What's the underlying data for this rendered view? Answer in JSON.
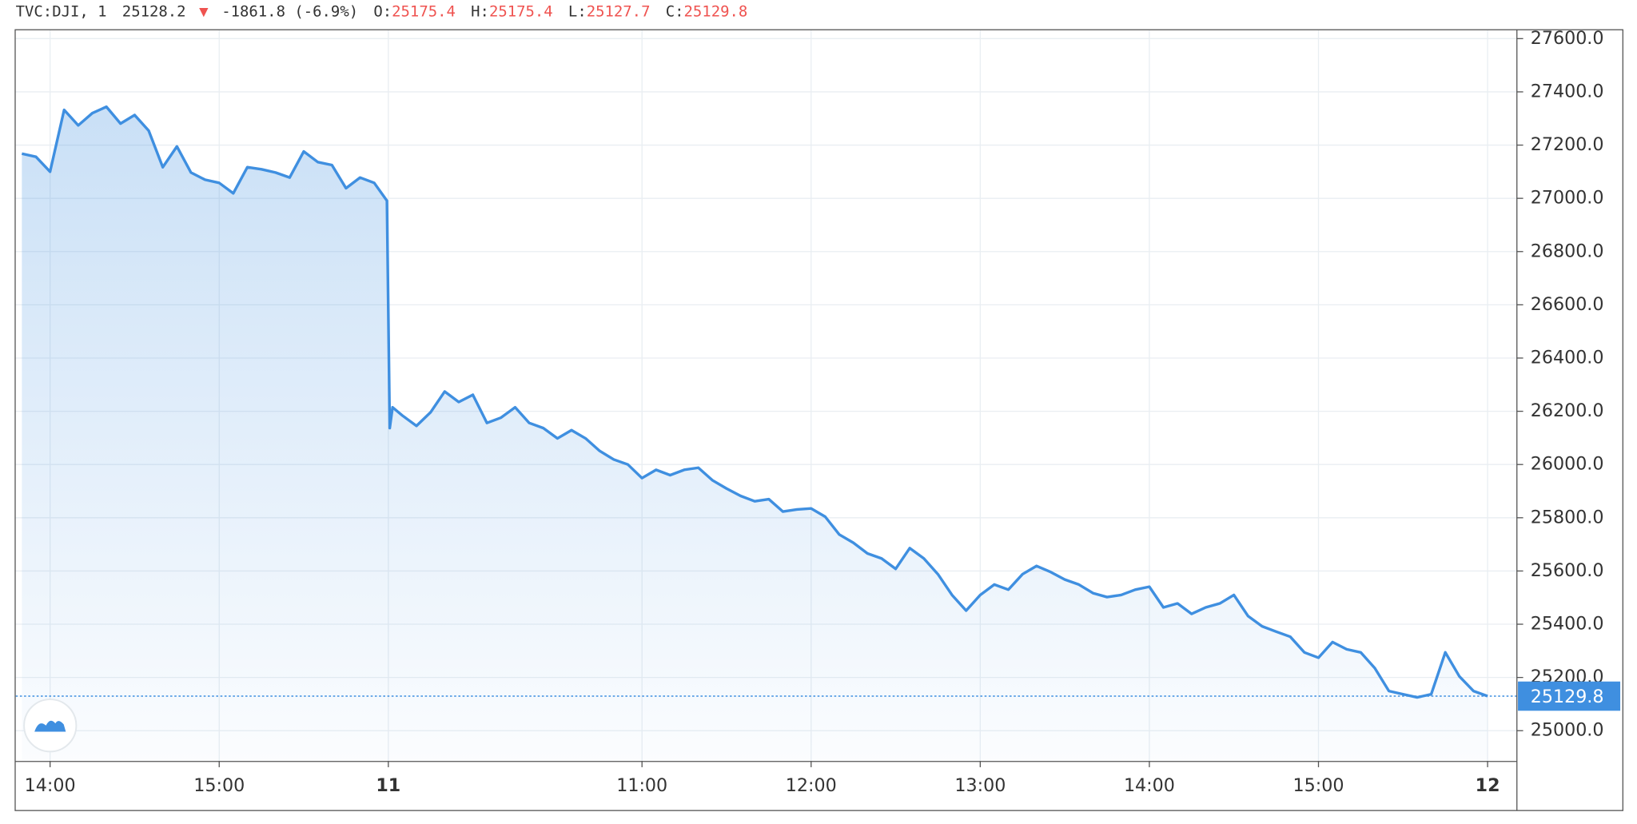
{
  "header": {
    "symbol": "TVC:DJI, 1",
    "last": "25128.2",
    "change": "-1861.8 (-6.9%)",
    "open_label": "O:",
    "open": "25175.4",
    "high_label": "H:",
    "high": "25175.4",
    "low_label": "L:",
    "low": "25127.7",
    "close_label": "C:",
    "close": "25129.8"
  },
  "chart_data": {
    "type": "area",
    "color": "#3f8fe0",
    "grid": true,
    "x": [
      -10,
      -5,
      0,
      5,
      10,
      15,
      20,
      25,
      30,
      35,
      40,
      45,
      50,
      55,
      60,
      65,
      70,
      75,
      80,
      85,
      90,
      95,
      100,
      105,
      110,
      115,
      119.5,
      120.5,
      121.5,
      125,
      130,
      135,
      140,
      145,
      150,
      155,
      160,
      165,
      170,
      175,
      180,
      185,
      190,
      195,
      200,
      205,
      210,
      215,
      220,
      225,
      230,
      235,
      240,
      245,
      250,
      255,
      260,
      265,
      270,
      275,
      280,
      285,
      290,
      295,
      300,
      305,
      310,
      315,
      320,
      325,
      330,
      335,
      340,
      345,
      350,
      355,
      360,
      365,
      370,
      375,
      380,
      385,
      390,
      395,
      400,
      405,
      410,
      415,
      420,
      425,
      430,
      435,
      440,
      445,
      450,
      455,
      460,
      465,
      470,
      475,
      480,
      485,
      490,
      495,
      500,
      505,
      510
    ],
    "values": [
      27168,
      27156,
      27100,
      27332,
      27274,
      27320,
      27344,
      27281,
      27313,
      27254,
      27117,
      27195,
      27097,
      27070,
      27058,
      27019,
      27117,
      27109,
      27097,
      27078,
      27176,
      27136,
      27125,
      27038,
      27078,
      27058,
      26991,
      26137,
      26215,
      26184,
      26145,
      26196,
      26274,
      26235,
      26262,
      26156,
      26176,
      26215,
      26156,
      26137,
      26098,
      26129,
      26098,
      26051,
      26019,
      26000,
      25949,
      25980,
      25960,
      25980,
      25988,
      25941,
      25910,
      25882,
      25862,
      25870,
      25823,
      25831,
      25835,
      25804,
      25737,
      25706,
      25666,
      25647,
      25608,
      25686,
      25647,
      25588,
      25510,
      25451,
      25510,
      25549,
      25530,
      25588,
      25619,
      25596,
      25568,
      25549,
      25517,
      25502,
      25510,
      25530,
      25541,
      25463,
      25478,
      25439,
      25463,
      25478,
      25510,
      25431,
      25392,
      25372,
      25353,
      25294,
      25274,
      25333,
      25306,
      25294,
      25235,
      25149,
      25137,
      25125,
      25137,
      25294,
      25204,
      25149,
      25130
    ],
    "last_value": 25129.8,
    "xlim": [
      -12.2,
      520.4
    ],
    "xticks": [
      {
        "value": 0,
        "label": "14:00"
      },
      {
        "value": 60,
        "label": "15:00"
      },
      {
        "value": 120,
        "label": "11"
      },
      {
        "value": 210,
        "label": "11:00"
      },
      {
        "value": 270,
        "label": "12:00"
      },
      {
        "value": 330,
        "label": "13:00"
      },
      {
        "value": 390,
        "label": "14:00"
      },
      {
        "value": 450,
        "label": "15:00"
      },
      {
        "value": 510,
        "label": "12"
      }
    ],
    "ylim": [
      24886.3,
      27631.4
    ],
    "yticks": [
      {
        "value": 25000,
        "label": "25000.0"
      },
      {
        "value": 25200,
        "label": "25200.0"
      },
      {
        "value": 25400,
        "label": "25400.0"
      },
      {
        "value": 25600,
        "label": "25600.0"
      },
      {
        "value": 25800,
        "label": "25800.0"
      },
      {
        "value": 26000,
        "label": "26000.0"
      },
      {
        "value": 26200,
        "label": "26200.0"
      },
      {
        "value": 26400,
        "label": "26400.0"
      },
      {
        "value": 26600,
        "label": "26600.0"
      },
      {
        "value": 26800,
        "label": "26800.0"
      },
      {
        "value": 27000,
        "label": "27000.0"
      },
      {
        "value": 27200,
        "label": "27200.0"
      },
      {
        "value": 27400,
        "label": "27400.0"
      },
      {
        "value": 27600,
        "label": "27600.0"
      }
    ]
  }
}
